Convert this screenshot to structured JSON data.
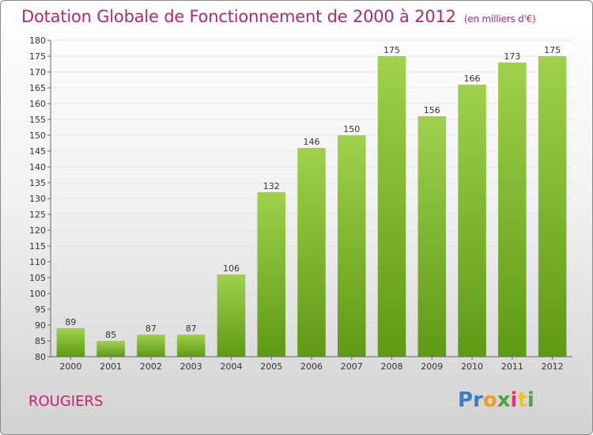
{
  "header": {
    "title": "Dotation Globale de Fonctionnement de 2000 à 2012",
    "unit": "(en milliers d'€)"
  },
  "footer": {
    "commune": "ROUGIERS",
    "brand": "Proxiti"
  },
  "colors": {
    "title": "#c0246a",
    "bar_top": "#9fd14c",
    "bar_bottom": "#5f9a14",
    "grid": "#e6e6e6"
  },
  "chart_data": {
    "type": "bar",
    "title": "Dotation Globale de Fonctionnement de 2000 à 2012",
    "xlabel": "",
    "ylabel": "",
    "categories": [
      "2000",
      "2001",
      "2002",
      "2003",
      "2004",
      "2005",
      "2006",
      "2007",
      "2008",
      "2009",
      "2010",
      "2011",
      "2012"
    ],
    "values": [
      89,
      85,
      87,
      87,
      106,
      132,
      146,
      150,
      175,
      156,
      166,
      173,
      175
    ],
    "ylim": [
      80,
      180
    ],
    "yticks": [
      80,
      85,
      90,
      95,
      100,
      105,
      110,
      115,
      120,
      125,
      130,
      135,
      140,
      145,
      150,
      155,
      160,
      165,
      170,
      175,
      180
    ],
    "grid": true,
    "data_labels": true
  }
}
